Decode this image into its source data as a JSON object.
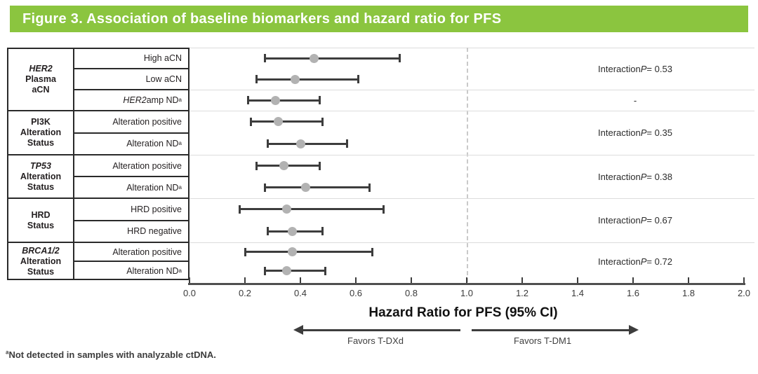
{
  "header": {
    "title": "Figure 3. Association of baseline biomarkers and hazard ratio for PFS",
    "bg_color": "#8bc53f",
    "text_color": "#ffffff"
  },
  "footnote": {
    "marker": "a",
    "text": "Not detected in samples with analyzable ctDNA."
  },
  "chart_data": {
    "type": "forest",
    "title": "Figure 3. Association of baseline biomarkers and hazard ratio for PFS",
    "xlabel": "Hazard Ratio for PFS (95% CI)",
    "xlim": [
      0.0,
      2.0
    ],
    "xticks": [
      "0.0",
      "0.2",
      "0.4",
      "0.6",
      "0.8",
      "1.0",
      "1.2",
      "1.4",
      "1.6",
      "1.8",
      "2.0"
    ],
    "reference_line": 1.0,
    "favors": {
      "left": "Favors T-DXd",
      "right": "Favors T-DM1"
    },
    "interaction_prefix": "Interaction",
    "point_color": "#b2b2b2",
    "ci_color": "#3d3d3d",
    "groups": [
      {
        "name_lines": [
          {
            "text": "HER2",
            "italic": true
          },
          {
            "text": "Plasma",
            "italic": false
          },
          {
            "text": "aCN",
            "italic": false
          }
        ],
        "bands": [
          {
            "interaction_p": "0.53",
            "rows": [
              {
                "label": [
                  {
                    "text": "High aCN"
                  }
                ],
                "hr": 0.45,
                "ci": [
                  0.27,
                  0.76
                ]
              },
              {
                "label": [
                  {
                    "text": "Low aCN"
                  }
                ],
                "hr": 0.38,
                "ci": [
                  0.24,
                  0.61
                ]
              }
            ]
          },
          {
            "interaction_p": "-",
            "rows": [
              {
                "label": [
                  {
                    "text": "HER2",
                    "italic": true
                  },
                  {
                    "text": " amp ND"
                  },
                  {
                    "text": "a",
                    "sup": true
                  }
                ],
                "hr": 0.31,
                "ci": [
                  0.21,
                  0.47
                ]
              }
            ]
          }
        ]
      },
      {
        "name_lines": [
          {
            "text": "PI3K",
            "italic": false
          },
          {
            "text": "Alteration",
            "italic": false
          },
          {
            "text": "Status",
            "italic": false
          }
        ],
        "bands": [
          {
            "interaction_p": "0.35",
            "rows": [
              {
                "label": [
                  {
                    "text": "Alteration positive"
                  }
                ],
                "hr": 0.32,
                "ci": [
                  0.22,
                  0.48
                ]
              },
              {
                "label": [
                  {
                    "text": "Alteration ND"
                  },
                  {
                    "text": "a",
                    "sup": true
                  }
                ],
                "hr": 0.4,
                "ci": [
                  0.28,
                  0.57
                ]
              }
            ]
          }
        ]
      },
      {
        "name_lines": [
          {
            "text": "TP53",
            "italic": true
          },
          {
            "text": "Alteration",
            "italic": false
          },
          {
            "text": "Status",
            "italic": false
          }
        ],
        "bands": [
          {
            "interaction_p": "0.38",
            "rows": [
              {
                "label": [
                  {
                    "text": "Alteration positive"
                  }
                ],
                "hr": 0.34,
                "ci": [
                  0.24,
                  0.47
                ]
              },
              {
                "label": [
                  {
                    "text": "Alteration ND"
                  },
                  {
                    "text": "a",
                    "sup": true
                  }
                ],
                "hr": 0.42,
                "ci": [
                  0.27,
                  0.65
                ]
              }
            ]
          }
        ]
      },
      {
        "name_lines": [
          {
            "text": "HRD",
            "italic": false
          },
          {
            "text": "Status",
            "italic": false
          }
        ],
        "bands": [
          {
            "interaction_p": "0.67",
            "rows": [
              {
                "label": [
                  {
                    "text": "HRD positive"
                  }
                ],
                "hr": 0.35,
                "ci": [
                  0.18,
                  0.7
                ]
              },
              {
                "label": [
                  {
                    "text": "HRD negative"
                  }
                ],
                "hr": 0.37,
                "ci": [
                  0.28,
                  0.48
                ]
              }
            ]
          }
        ]
      },
      {
        "name_lines": [
          {
            "text": "BRCA1/2",
            "italic": true
          },
          {
            "text": "Alteration",
            "italic": false
          },
          {
            "text": "Status",
            "italic": false
          }
        ],
        "bands": [
          {
            "interaction_p": "0.72",
            "rows": [
              {
                "label": [
                  {
                    "text": "Alteration positive"
                  }
                ],
                "hr": 0.37,
                "ci": [
                  0.2,
                  0.66
                ]
              },
              {
                "label": [
                  {
                    "text": "Alteration ND"
                  },
                  {
                    "text": "a",
                    "sup": true
                  }
                ],
                "hr": 0.35,
                "ci": [
                  0.27,
                  0.49
                ]
              }
            ]
          }
        ]
      }
    ]
  }
}
